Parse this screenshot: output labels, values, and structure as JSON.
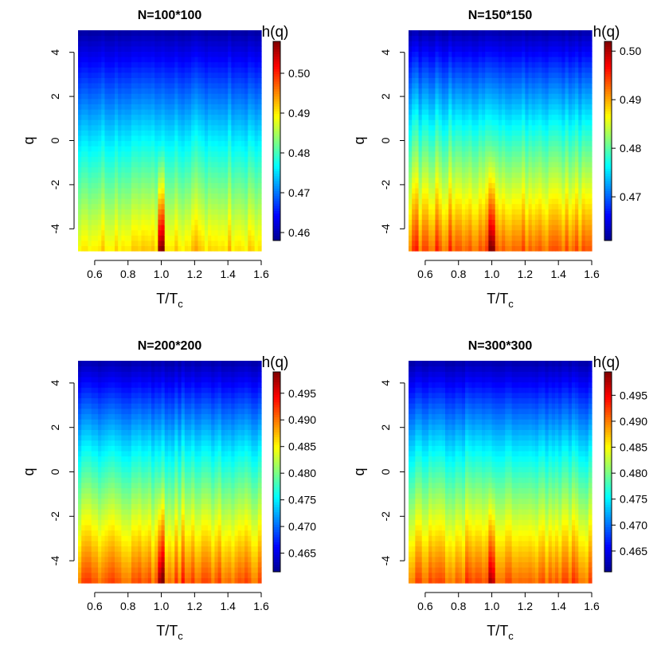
{
  "figure": {
    "colormap": [
      "#00008f",
      "#0000ff",
      "#0080ff",
      "#00ffff",
      "#80ff80",
      "#ffff00",
      "#ff8000",
      "#ff0000",
      "#800000"
    ]
  },
  "chart_data": [
    {
      "type": "heatmap",
      "title": "N=100*100",
      "xlabel": "T/T",
      "xlabel_sub": "c",
      "ylabel": "q",
      "xlim": [
        0.5,
        1.6
      ],
      "ylim": [
        -5,
        5
      ],
      "x_ticks": [
        0.6,
        0.8,
        1.0,
        1.2,
        1.4,
        1.6
      ],
      "x_tick_labels": [
        "0.6",
        "0.8",
        "1.0",
        "1.2",
        "1.4",
        "1.6"
      ],
      "y_ticks": [
        -4,
        -2,
        0,
        2,
        4
      ],
      "y_tick_labels": [
        "-4",
        "-2",
        "0",
        "2",
        "4"
      ],
      "colorbar_label": "h(q)",
      "zlim": [
        0.458,
        0.508
      ],
      "colorbar_ticks": [
        0.46,
        0.47,
        0.48,
        0.49,
        0.5
      ],
      "colorbar_tick_labels": [
        "0.46",
        "0.47",
        "0.48",
        "0.49",
        "0.50"
      ],
      "h_at_q_plus5": 0.459,
      "h_at_q_minus5": 0.491,
      "peak_T": 1.0,
      "peak_h": 0.507
    },
    {
      "type": "heatmap",
      "title": "N=150*150",
      "xlabel": "T/T",
      "xlabel_sub": "c",
      "ylabel": "q",
      "xlim": [
        0.5,
        1.6
      ],
      "ylim": [
        -5,
        5
      ],
      "x_ticks": [
        0.6,
        0.8,
        1.0,
        1.2,
        1.4,
        1.6
      ],
      "x_tick_labels": [
        "0.6",
        "0.8",
        "1.0",
        "1.2",
        "1.4",
        "1.6"
      ],
      "y_ticks": [
        -4,
        -2,
        0,
        2,
        4
      ],
      "y_tick_labels": [
        "-4",
        "-2",
        "0",
        "2",
        "4"
      ],
      "colorbar_label": "h(q)",
      "zlim": [
        0.461,
        0.502
      ],
      "colorbar_ticks": [
        0.47,
        0.48,
        0.49,
        0.5
      ],
      "colorbar_tick_labels": [
        "0.47",
        "0.48",
        "0.49",
        "0.50"
      ],
      "h_at_q_plus5": 0.462,
      "h_at_q_minus5": 0.493,
      "peak_T": 1.0,
      "peak_h": 0.501
    },
    {
      "type": "heatmap",
      "title": "N=200*200",
      "xlabel": "T/T",
      "xlabel_sub": "c",
      "ylabel": "q",
      "xlim": [
        0.5,
        1.6
      ],
      "ylim": [
        -5,
        5
      ],
      "x_ticks": [
        0.6,
        0.8,
        1.0,
        1.2,
        1.4,
        1.6
      ],
      "x_tick_labels": [
        "0.6",
        "0.8",
        "1.0",
        "1.2",
        "1.4",
        "1.6"
      ],
      "y_ticks": [
        -4,
        -2,
        0,
        2,
        4
      ],
      "y_tick_labels": [
        "-4",
        "-2",
        "0",
        "2",
        "4"
      ],
      "colorbar_label": "h(q)",
      "zlim": [
        0.4615,
        0.499
      ],
      "colorbar_ticks": [
        0.465,
        0.47,
        0.475,
        0.48,
        0.485,
        0.49,
        0.495
      ],
      "colorbar_tick_labels": [
        "0.465",
        "0.470",
        "0.475",
        "0.480",
        "0.485",
        "0.490",
        "0.495"
      ],
      "h_at_q_plus5": 0.4625,
      "h_at_q_minus5": 0.491,
      "peak_T": 1.0,
      "peak_h": 0.498
    },
    {
      "type": "heatmap",
      "title": "N=300*300",
      "xlabel": "T/T",
      "xlabel_sub": "c",
      "ylabel": "q",
      "xlim": [
        0.5,
        1.6
      ],
      "ylim": [
        -5,
        5
      ],
      "x_ticks": [
        0.6,
        0.8,
        1.0,
        1.2,
        1.4,
        1.6
      ],
      "x_tick_labels": [
        "0.6",
        "0.8",
        "1.0",
        "1.2",
        "1.4",
        "1.6"
      ],
      "y_ticks": [
        -4,
        -2,
        0,
        2,
        4
      ],
      "y_tick_labels": [
        "-4",
        "-2",
        "0",
        "2",
        "4"
      ],
      "colorbar_label": "h(q)",
      "zlim": [
        0.461,
        0.4995
      ],
      "colorbar_ticks": [
        0.465,
        0.47,
        0.475,
        0.48,
        0.485,
        0.49,
        0.495
      ],
      "colorbar_tick_labels": [
        "0.465",
        "0.470",
        "0.475",
        "0.480",
        "0.485",
        "0.490",
        "0.495"
      ],
      "h_at_q_plus5": 0.462,
      "h_at_q_minus5": 0.491,
      "peak_T": 1.0,
      "peak_h": 0.497
    }
  ]
}
